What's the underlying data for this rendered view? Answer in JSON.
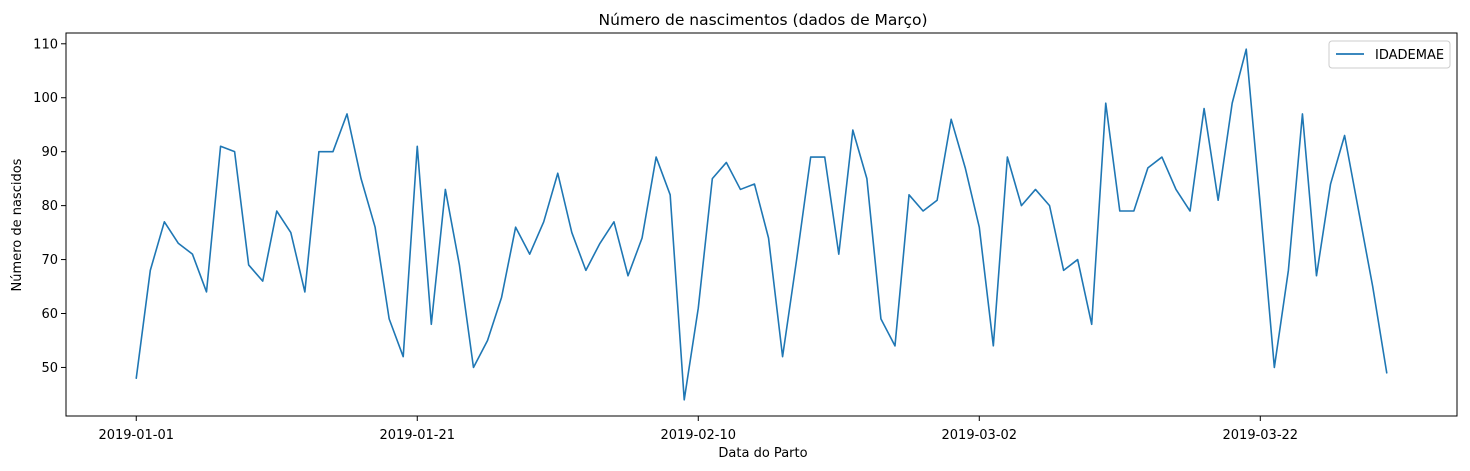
{
  "chart_data": {
    "type": "line",
    "title": "Número de nascimentos (dados de Março)",
    "xlabel": "Data do Parto",
    "ylabel": "Número de nascidos",
    "x_start": "2019-01-01",
    "x_end": "2019-03-31",
    "xlim": [
      "2018-12-27",
      "2019-04-05"
    ],
    "ylim": [
      41,
      112
    ],
    "xticks": [
      "2019-01-01",
      "2019-01-21",
      "2019-02-10",
      "2019-03-02",
      "2019-03-22"
    ],
    "yticks": [
      50,
      60,
      70,
      80,
      90,
      100,
      110
    ],
    "grid": false,
    "legend_position": "top-right",
    "series": [
      {
        "name": "IDADEMAE",
        "color": "#1f77b4",
        "values": [
          48,
          68,
          77,
          73,
          71,
          64,
          91,
          90,
          69,
          66,
          79,
          75,
          64,
          90,
          90,
          97,
          85,
          76,
          59,
          52,
          91,
          58,
          83,
          69,
          50,
          55,
          63,
          76,
          71,
          77,
          86,
          75,
          68,
          73,
          77,
          67,
          74,
          89,
          82,
          44,
          61,
          85,
          88,
          83,
          84,
          74,
          52,
          70,
          89,
          89,
          71,
          94,
          85,
          59,
          54,
          82,
          79,
          81,
          96,
          87,
          76,
          54,
          89,
          80,
          83,
          80,
          68,
          70,
          58,
          99,
          79,
          79,
          87,
          89,
          83,
          79,
          98,
          81,
          99,
          109,
          80,
          50,
          68,
          97,
          67,
          84,
          93,
          79,
          65,
          49
        ]
      }
    ]
  }
}
